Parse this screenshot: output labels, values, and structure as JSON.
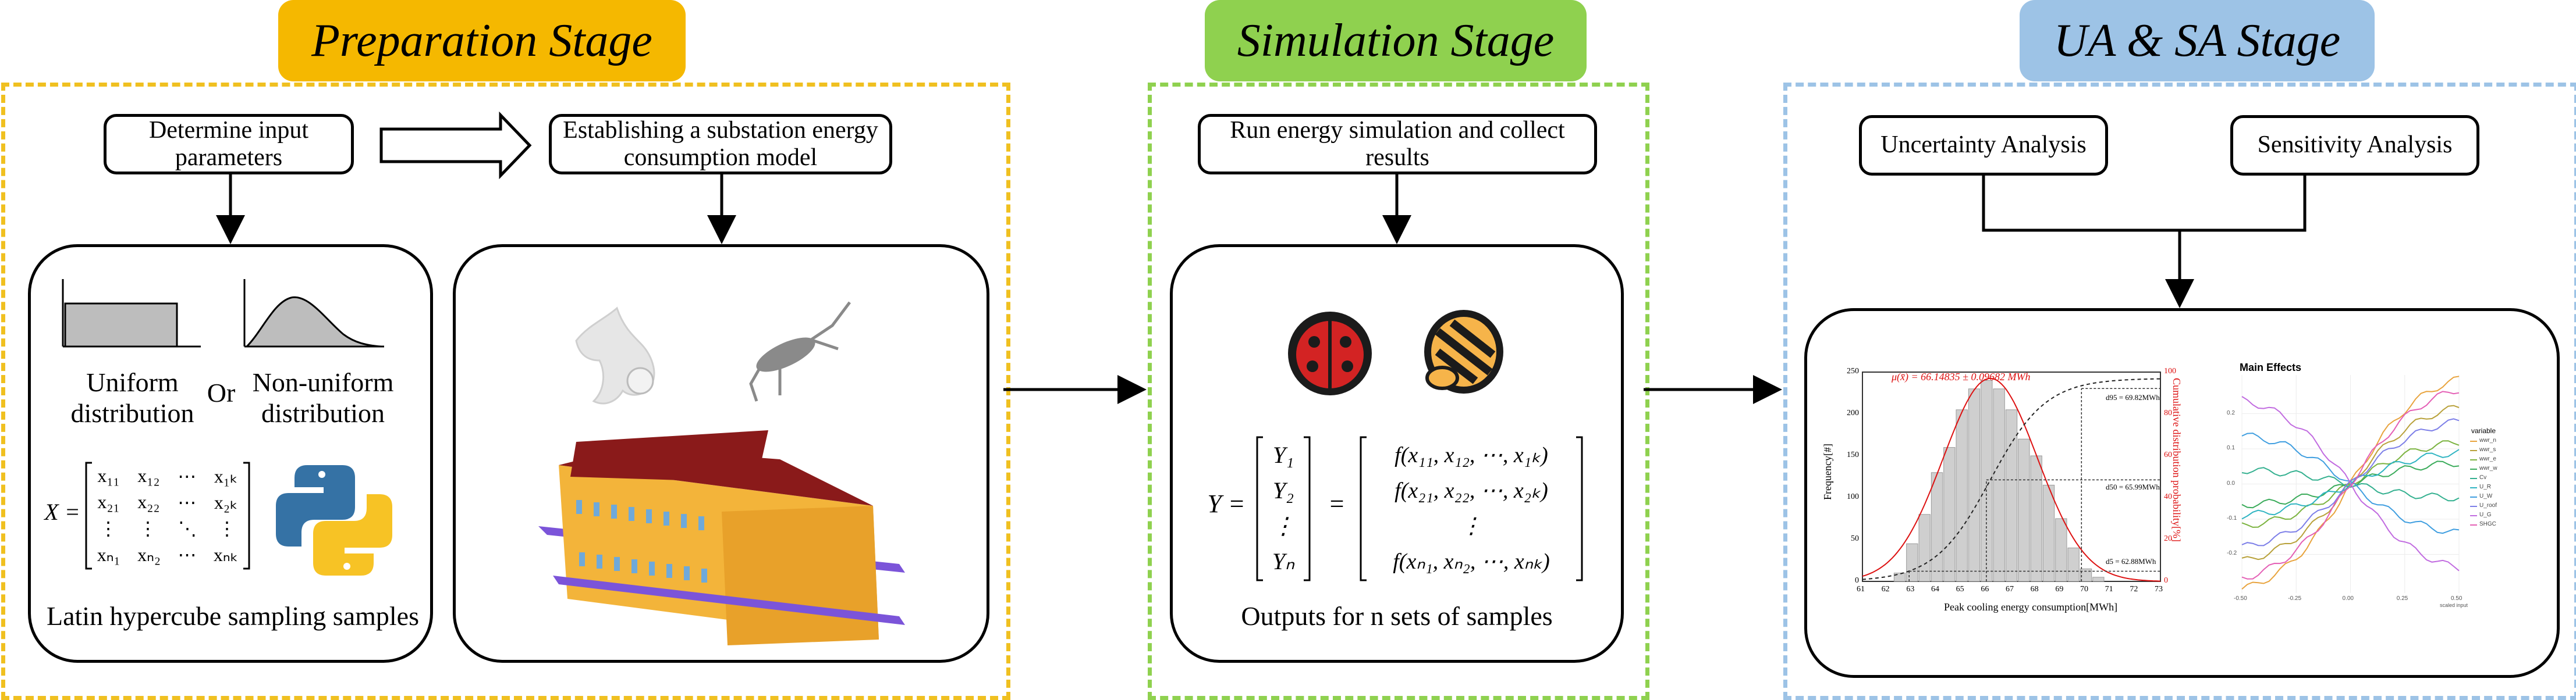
{
  "stages": {
    "preparation": {
      "title": "Preparation Stage",
      "color": "#f5b800",
      "border": "#f0c020"
    },
    "simulation": {
      "title": "Simulation Stage",
      "color": "#8fd14f",
      "border": "#8fd14f"
    },
    "ua_sa": {
      "title": "UA & SA Stage",
      "color": "#9dc3e6",
      "border": "#9dc3e6"
    }
  },
  "preparation": {
    "determine_input": "Determine input parameters",
    "establish_model": "Establishing a substation energy consumption model",
    "uniform": "Uniform distribution",
    "or": "Or",
    "nonuniform": "Non-uniform distribution",
    "matrix_lhs": "X =",
    "matrix_rows": [
      [
        "x₁₁",
        "x₁₂",
        "⋯",
        "x₁ₖ"
      ],
      [
        "x₂₁",
        "x₂₂",
        "⋯",
        "x₂ₖ"
      ],
      [
        "⋮",
        "⋮",
        "⋱",
        "⋮"
      ],
      [
        "xₙ₁",
        "xₙ₂",
        "⋯",
        "xₙₖ"
      ]
    ],
    "lhs_caption": "Latin hypercube sampling samples"
  },
  "simulation": {
    "run_label": "Run energy simulation and collect results",
    "y_lhs": "Y =",
    "y_vector": [
      "Y₁",
      "Y₂",
      "⋮",
      "Yₙ"
    ],
    "f_vector": [
      "f(x₁₁, x₁₂, ⋯, x₁ₖ)",
      "f(x₂₁, x₂₂, ⋯, x₂ₖ)",
      "⋮",
      "f(xₙ₁, xₙ₂, ⋯, xₙₖ)"
    ],
    "eq": "=",
    "outputs_caption": "Outputs for n sets of samples"
  },
  "ua_sa": {
    "uncertainty": "Uncertainty Analysis",
    "sensitivity": "Sensitivity Analysis"
  },
  "histogram": {
    "mean_label": "μ(x̄) = 66.14835 ± 0.09682 MWh",
    "ylabel_left": "Frequency[#]",
    "ylabel_right": "Cumulative distribution probability[%]",
    "xlabel": "Peak cooling energy consumption[MWh]",
    "x_ticks": [
      "61",
      "62",
      "63",
      "64",
      "65",
      "66",
      "67",
      "68",
      "69",
      "70",
      "71",
      "72",
      "73"
    ],
    "y_ticks_left": [
      "0",
      "50",
      "100",
      "150",
      "200",
      "250"
    ],
    "y_ticks_right": [
      "0",
      "20",
      "40",
      "60",
      "80",
      "100"
    ],
    "d95": "d95 = 69.82MWh",
    "d50": "d50 = 65.99MWh",
    "d5": "d5 = 62.88MWh"
  },
  "chart_data": {
    "type": "bar",
    "title": "",
    "xlabel": "Peak cooling energy consumption[MWh]",
    "ylabel": "Frequency[#]",
    "x": [
      62.5,
      63.0,
      63.5,
      64.0,
      64.5,
      65.0,
      65.5,
      66.0,
      66.5,
      67.0,
      67.5,
      68.0,
      68.5,
      69.0,
      69.5,
      70.0,
      70.5
    ],
    "values": [
      10,
      45,
      80,
      130,
      160,
      205,
      230,
      240,
      230,
      205,
      170,
      150,
      115,
      75,
      40,
      15,
      5
    ],
    "xlim": [
      61,
      73
    ],
    "ylim": [
      0,
      250
    ]
  },
  "main_effects": {
    "title": "Main Effects",
    "legend_title": "variable",
    "legend": [
      "wwr_n",
      "wwr_s",
      "wwr_e",
      "wwr_w",
      "Cv",
      "U_R",
      "U_W",
      "U_roof",
      "U_G",
      "SHGC"
    ],
    "colors": [
      "#e8a33c",
      "#b8a13a",
      "#7bb33f",
      "#3aab5a",
      "#33b08f",
      "#2fb4c2",
      "#3f9ee0",
      "#7c7ee8",
      "#c16be0",
      "#e45fb5"
    ],
    "x_ticks": [
      "-0.50",
      "-0.25",
      "0.00",
      "0.25",
      "0.50"
    ],
    "y_ticks": [
      "0.2",
      "0.1",
      "0.0",
      "-0.1",
      "-0.2"
    ],
    "xlabel": "scaled input"
  }
}
